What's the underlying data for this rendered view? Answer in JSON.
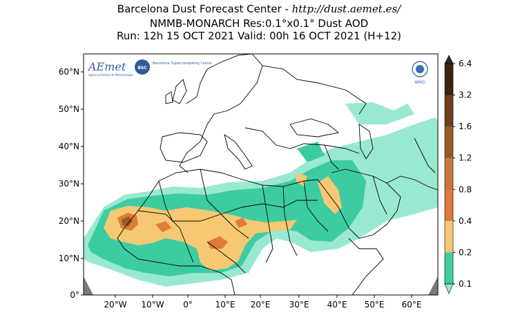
{
  "header": {
    "line1": "Barcelona Dust Forecast Center - ",
    "url": "http://dust.aemet.es/",
    "line2": "NMMB-MONARCH   Res:0.1°x0.1°   Dust AOD",
    "line3": "Run: 12h 15 OCT 2021   Valid: 00h 16 OCT 2021 (H+12)"
  },
  "map": {
    "lat_labels": [
      "60°N",
      "50°N",
      "40°N",
      "30°N",
      "20°N",
      "10°N",
      "0°"
    ],
    "lon_labels": [
      "20°W",
      "10°W",
      "0°",
      "10°E",
      "20°E",
      "30°E",
      "40°E",
      "50°E",
      "60°E"
    ],
    "extent": {
      "lon_min": -25,
      "lon_max": 65,
      "lat_min": 0,
      "lat_max": 65
    }
  },
  "logos": {
    "aemet": "AEmet",
    "aemet_sub": "Agencia Estatal de Meteorología",
    "bsc": "BSC",
    "bsc_text": "Barcelona Supercomputing Center",
    "wmo": "WMO"
  },
  "colorbar": {
    "labels": [
      "6.4",
      "3.2",
      "1.6",
      "1.2",
      "0.8",
      "0.4",
      "0.2",
      "0.1"
    ],
    "colors": [
      "#3b2314",
      "#6b3f1d",
      "#9a5b2a",
      "#c47a3a",
      "#e07b39",
      "#f6c873",
      "#3dcca2",
      "#99e8d2"
    ]
  }
}
